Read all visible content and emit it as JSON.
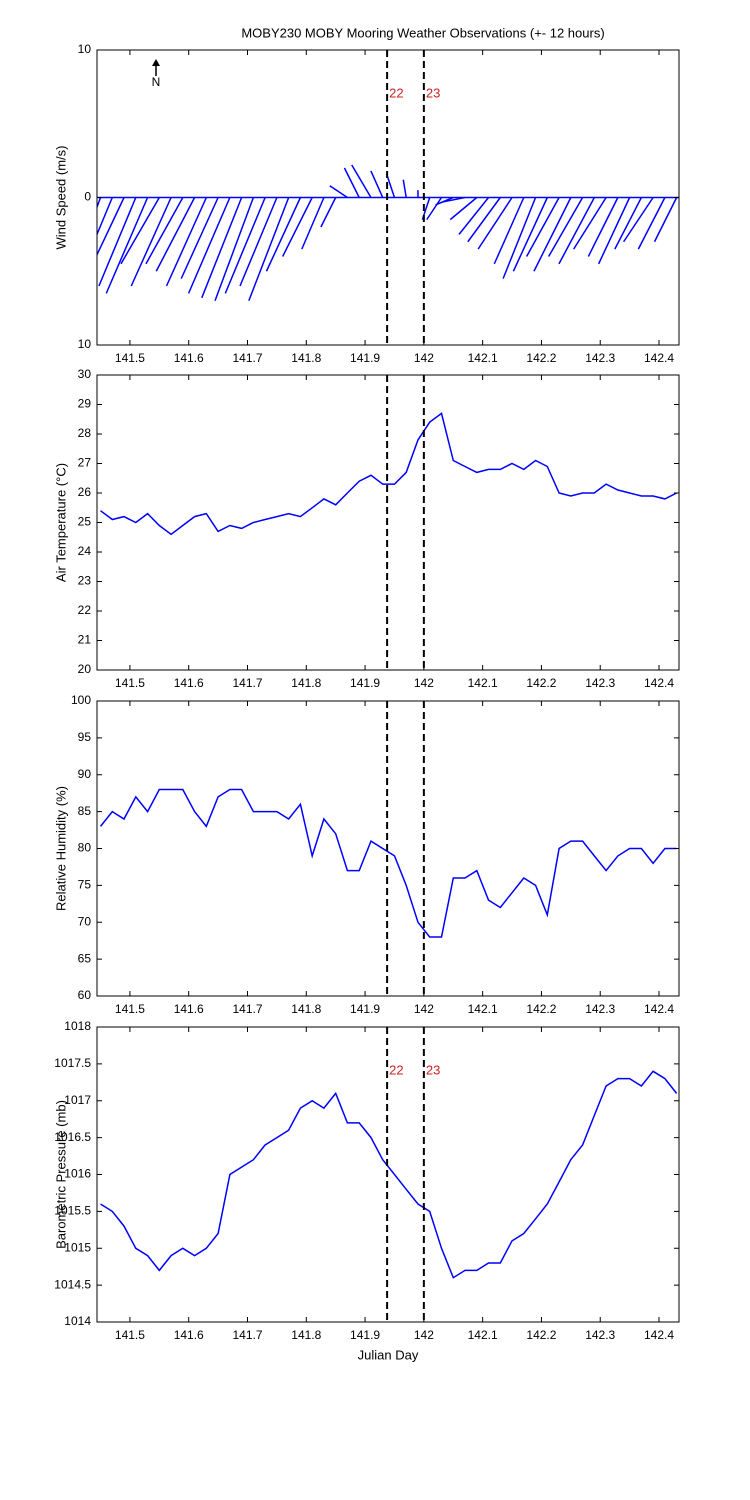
{
  "chart_data": [
    {
      "type": "stick",
      "title": "MOBY230 MOBY Mooring Weather Observations (+- 12 hours)",
      "ylabel": "Wind Speed (m/s)",
      "north_label": "N",
      "xlim": [
        141.444,
        142.434
      ],
      "xticks": [
        141.5,
        141.6,
        141.7,
        141.8,
        141.9,
        142,
        142.1,
        142.2,
        142.3,
        142.4
      ],
      "ylim": [
        -10,
        10
      ],
      "yticks": [
        {
          "value": -10,
          "label": "10"
        },
        0,
        {
          "value": 10,
          "label": "10"
        }
      ],
      "markers": [
        {
          "x": 141.9375,
          "label": "22"
        },
        {
          "x": 142.0,
          "label": "23"
        }
      ],
      "color": "#0000ff",
      "x": [
        141.45,
        141.47,
        141.49,
        141.51,
        141.53,
        141.55,
        141.57,
        141.59,
        141.61,
        141.63,
        141.65,
        141.67,
        141.69,
        141.71,
        141.73,
        141.75,
        141.77,
        141.79,
        141.81,
        141.83,
        141.85,
        141.87,
        141.89,
        141.91,
        141.93,
        141.95,
        141.97,
        141.99,
        142.01,
        142.03,
        142.05,
        142.07,
        142.09,
        142.11,
        142.13,
        142.15,
        142.17,
        142.19,
        142.21,
        142.23,
        142.25,
        142.27,
        142.29,
        142.31,
        142.33,
        142.35,
        142.37,
        142.39,
        142.41,
        142.43
      ],
      "u": [
        -2.5,
        -2.7,
        -2.6,
        -2.5,
        -2.8,
        -2.6,
        -2.7,
        -2.5,
        -2.6,
        -2.7,
        -2.5,
        -2.8,
        -2.7,
        -2.6,
        -2.7,
        -2.5,
        -2.7,
        -2.3,
        -2.0,
        -1.5,
        -1.0,
        -1.2,
        -1.0,
        -1.3,
        -0.8,
        -0.5,
        -0.2,
        0.0,
        -0.5,
        -1.0,
        -1.2,
        -1.5,
        -1.8,
        -2.0,
        -2.2,
        -2.3,
        -2.0,
        -2.2,
        -2.3,
        -2.2,
        -2.5,
        -2.3,
        -2.4,
        -2.2,
        -2.0,
        -2.1,
        -1.8,
        -2.0,
        -1.8,
        -1.5
      ],
      "v": [
        -6.8,
        -6.5,
        -5.5,
        -6.0,
        -6.5,
        -4.5,
        -6.0,
        -4.5,
        -5.0,
        -6.0,
        -5.5,
        -6.5,
        -6.8,
        -7.0,
        -6.5,
        -6.0,
        -7.0,
        -5.0,
        -4.0,
        -3.5,
        -2.0,
        0.8,
        2.0,
        2.2,
        1.8,
        1.5,
        1.2,
        0.5,
        -1.5,
        -1.5,
        -0.5,
        -0.3,
        -1.5,
        -2.5,
        -3.0,
        -3.5,
        -4.5,
        -5.5,
        -5.0,
        -4.0,
        -5.0,
        -4.0,
        -4.5,
        -3.5,
        -4.0,
        -4.5,
        -3.5,
        -3.0,
        -3.5,
        -3.0
      ]
    },
    {
      "type": "line",
      "ylabel": "Air Temperature (°C)",
      "xlim": [
        141.444,
        142.434
      ],
      "xticks": [
        141.5,
        141.6,
        141.7,
        141.8,
        141.9,
        142,
        142.1,
        142.2,
        142.3,
        142.4
      ],
      "ylim": [
        20,
        30
      ],
      "yticks": [
        20,
        21,
        22,
        23,
        24,
        25,
        26,
        27,
        28,
        29,
        30
      ],
      "markers": [
        {
          "x": 141.9375
        },
        {
          "x": 142.0
        }
      ],
      "x": [
        141.45,
        141.47,
        141.49,
        141.51,
        141.53,
        141.55,
        141.57,
        141.59,
        141.61,
        141.63,
        141.65,
        141.67,
        141.69,
        141.71,
        141.73,
        141.75,
        141.77,
        141.79,
        141.81,
        141.83,
        141.85,
        141.87,
        141.89,
        141.91,
        141.93,
        141.95,
        141.97,
        141.99,
        142.01,
        142.03,
        142.05,
        142.07,
        142.09,
        142.11,
        142.13,
        142.15,
        142.17,
        142.19,
        142.21,
        142.23,
        142.25,
        142.27,
        142.29,
        142.31,
        142.33,
        142.35,
        142.37,
        142.39,
        142.41,
        142.43
      ],
      "series": [
        {
          "color": "#0000ff",
          "values": [
            25.4,
            25.1,
            25.2,
            25.0,
            25.3,
            24.9,
            24.6,
            24.9,
            25.2,
            25.3,
            24.7,
            24.9,
            24.8,
            25.0,
            25.1,
            25.2,
            25.3,
            25.2,
            25.5,
            25.8,
            25.6,
            26.0,
            26.4,
            26.6,
            26.3,
            26.3,
            26.7,
            27.8,
            28.4,
            28.7,
            27.1,
            26.9,
            26.7,
            26.8,
            26.8,
            27.0,
            26.8,
            27.1,
            26.9,
            26.0,
            25.9,
            26.0,
            26.0,
            26.3,
            26.1,
            26.0,
            25.9,
            25.9,
            25.8,
            26.0
          ]
        }
      ]
    },
    {
      "type": "line",
      "ylabel": "Relative Humidity (%)",
      "xlim": [
        141.444,
        142.434
      ],
      "xticks": [
        141.5,
        141.6,
        141.7,
        141.8,
        141.9,
        142,
        142.1,
        142.2,
        142.3,
        142.4
      ],
      "ylim": [
        60,
        100
      ],
      "yticks": [
        60,
        65,
        70,
        75,
        80,
        85,
        90,
        95,
        100
      ],
      "markers": [
        {
          "x": 141.9375
        },
        {
          "x": 142.0
        }
      ],
      "x": [
        141.45,
        141.47,
        141.49,
        141.51,
        141.53,
        141.55,
        141.57,
        141.59,
        141.61,
        141.63,
        141.65,
        141.67,
        141.69,
        141.71,
        141.73,
        141.75,
        141.77,
        141.79,
        141.81,
        141.83,
        141.85,
        141.87,
        141.89,
        141.91,
        141.93,
        141.95,
        141.97,
        141.99,
        142.01,
        142.03,
        142.05,
        142.07,
        142.09,
        142.11,
        142.13,
        142.15,
        142.17,
        142.19,
        142.21,
        142.23,
        142.25,
        142.27,
        142.29,
        142.31,
        142.33,
        142.35,
        142.37,
        142.39,
        142.41,
        142.43
      ],
      "series": [
        {
          "color": "#0000ff",
          "values": [
            83,
            85,
            84,
            87,
            85,
            88,
            88,
            88,
            85,
            83,
            87,
            88,
            88,
            85,
            85,
            85,
            84,
            86,
            79,
            84,
            82,
            77,
            77,
            81,
            80,
            79,
            75,
            70,
            68,
            68,
            76,
            76,
            77,
            73,
            72,
            74,
            76,
            75,
            71,
            80,
            81,
            81,
            79,
            77,
            79,
            80,
            80,
            78,
            80,
            80
          ]
        }
      ]
    },
    {
      "type": "line",
      "ylabel": "Barometric Pressure (mb)",
      "xlabel": "Julian Day",
      "xlim": [
        141.444,
        142.434
      ],
      "xticks": [
        141.5,
        141.6,
        141.7,
        141.8,
        141.9,
        142,
        142.1,
        142.2,
        142.3,
        142.4
      ],
      "ylim": [
        1014,
        1018
      ],
      "yticks": [
        1014,
        1014.5,
        1015,
        1015.5,
        1016,
        1016.5,
        1017,
        1017.5,
        1018
      ],
      "markers": [
        {
          "x": 141.9375,
          "label": "22"
        },
        {
          "x": 142.0,
          "label": "23"
        }
      ],
      "x": [
        141.45,
        141.47,
        141.49,
        141.51,
        141.53,
        141.55,
        141.57,
        141.59,
        141.61,
        141.63,
        141.65,
        141.67,
        141.69,
        141.71,
        141.73,
        141.75,
        141.77,
        141.79,
        141.81,
        141.83,
        141.85,
        141.87,
        141.89,
        141.91,
        141.93,
        141.95,
        141.97,
        141.99,
        142.01,
        142.03,
        142.05,
        142.07,
        142.09,
        142.11,
        142.13,
        142.15,
        142.17,
        142.19,
        142.21,
        142.23,
        142.25,
        142.27,
        142.29,
        142.31,
        142.33,
        142.35,
        142.37,
        142.39,
        142.41,
        142.43
      ],
      "series": [
        {
          "color": "#0000ff",
          "values": [
            1015.6,
            1015.5,
            1015.3,
            1015.0,
            1014.9,
            1014.7,
            1014.9,
            1015.0,
            1014.9,
            1015.0,
            1015.2,
            1016.0,
            1016.1,
            1016.2,
            1016.4,
            1016.5,
            1016.6,
            1016.9,
            1017.0,
            1016.9,
            1017.1,
            1016.7,
            1016.7,
            1016.5,
            1016.2,
            1016.0,
            1015.8,
            1015.6,
            1015.5,
            1015.0,
            1014.6,
            1014.7,
            1014.7,
            1014.8,
            1014.8,
            1015.1,
            1015.2,
            1015.4,
            1015.6,
            1015.9,
            1016.2,
            1016.4,
            1016.8,
            1017.2,
            1017.3,
            1017.3,
            1017.2,
            1017.4,
            1017.3,
            1017.1
          ]
        }
      ]
    }
  ]
}
